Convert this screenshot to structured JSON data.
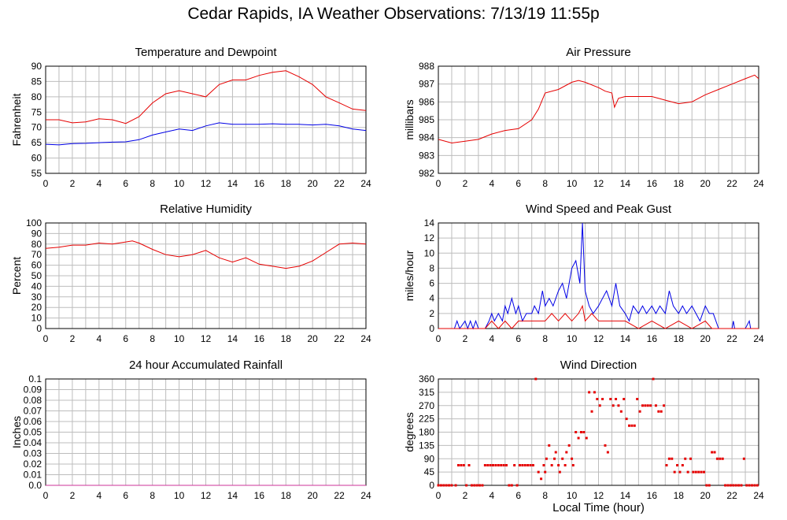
{
  "title": "Cedar Rapids, IA Weather Observations: 7/13/19 11:55p",
  "xlabel": "Local Time (hour)",
  "chart_data": [
    {
      "id": "temp",
      "type": "line",
      "title": "Temperature and Dewpoint",
      "xlabel": "",
      "ylabel": "Fahrenheit",
      "xlim": [
        0,
        24
      ],
      "ylim": [
        55,
        90
      ],
      "xticks": [
        "0",
        "2",
        "4",
        "6",
        "8",
        "10",
        "12",
        "14",
        "16",
        "18",
        "20",
        "22",
        "24"
      ],
      "yticks": [
        "55",
        "60",
        "65",
        "70",
        "75",
        "80",
        "85",
        "90"
      ],
      "grid": true,
      "series": [
        {
          "color": "#e60000",
          "x": [
            0,
            1,
            2,
            3,
            4,
            5,
            6,
            7,
            8,
            9,
            10,
            11,
            12,
            13,
            14,
            15,
            16,
            17,
            18,
            19,
            20,
            21,
            22,
            23,
            24
          ],
          "values": [
            72.5,
            72.5,
            71.5,
            71.8,
            72.8,
            72.5,
            71.3,
            73.5,
            78,
            81,
            82,
            81,
            80,
            84,
            85.5,
            85.5,
            87,
            88,
            88.5,
            86.5,
            84,
            80,
            78,
            76,
            75.5
          ]
        },
        {
          "color": "#0000e6",
          "x": [
            0,
            1,
            2,
            3,
            4,
            5,
            6,
            7,
            8,
            9,
            10,
            11,
            12,
            13,
            14,
            15,
            16,
            17,
            18,
            19,
            20,
            21,
            22,
            23,
            24
          ],
          "values": [
            64.5,
            64.3,
            64.7,
            64.8,
            65,
            65.2,
            65.3,
            66,
            67.5,
            68.5,
            69.5,
            69,
            70.5,
            71.5,
            71,
            71,
            71,
            71.2,
            71,
            71,
            70.8,
            71,
            70.5,
            69.5,
            69
          ]
        }
      ]
    },
    {
      "id": "pressure",
      "type": "line",
      "title": "Air Pressure",
      "xlabel": "",
      "ylabel": "millibars",
      "xlim": [
        0,
        24
      ],
      "ylim": [
        982,
        988
      ],
      "xticks": [
        "0",
        "2",
        "4",
        "6",
        "8",
        "10",
        "12",
        "14",
        "16",
        "18",
        "20",
        "22",
        "24"
      ],
      "yticks": [
        "982",
        "983",
        "984",
        "985",
        "986",
        "987",
        "988"
      ],
      "grid": true,
      "series": [
        {
          "color": "#e60000",
          "x": [
            0,
            1,
            2,
            3,
            4,
            5,
            6,
            7,
            7.5,
            8,
            9,
            10,
            10.5,
            11,
            12,
            12.5,
            13,
            13.2,
            13.5,
            14,
            15,
            16,
            17,
            18,
            19,
            20,
            21,
            22,
            23,
            23.7,
            24
          ],
          "values": [
            983.9,
            983.7,
            983.8,
            983.9,
            984.2,
            984.4,
            984.5,
            985,
            985.6,
            986.5,
            986.7,
            987.1,
            987.2,
            987.1,
            986.8,
            986.6,
            986.5,
            985.7,
            986.2,
            986.3,
            986.3,
            986.3,
            986.1,
            985.9,
            986,
            986.4,
            986.7,
            987,
            987.3,
            987.5,
            987.3
          ]
        }
      ]
    },
    {
      "id": "humidity",
      "type": "line",
      "title": "Relative Humidity",
      "xlabel": "",
      "ylabel": "Percent",
      "xlim": [
        0,
        24
      ],
      "ylim": [
        0,
        100
      ],
      "xticks": [
        "0",
        "2",
        "4",
        "6",
        "8",
        "10",
        "12",
        "14",
        "16",
        "18",
        "20",
        "22",
        "24"
      ],
      "yticks": [
        "0",
        "10",
        "20",
        "30",
        "40",
        "50",
        "60",
        "70",
        "80",
        "90",
        "100"
      ],
      "grid": true,
      "series": [
        {
          "color": "#e60000",
          "x": [
            0,
            1,
            2,
            3,
            4,
            5,
            6,
            6.5,
            7,
            8,
            9,
            10,
            11,
            12,
            13,
            14,
            15,
            16,
            17,
            18,
            19,
            20,
            21,
            22,
            23,
            24
          ],
          "values": [
            76,
            77,
            79,
            79,
            81,
            80,
            82,
            83,
            81,
            75,
            70,
            68,
            70,
            74,
            67,
            63,
            67,
            61,
            59,
            57,
            59,
            64,
            72,
            80,
            81,
            80
          ]
        }
      ]
    },
    {
      "id": "wind",
      "type": "line",
      "title": "Wind Speed and Peak Gust",
      "xlabel": "",
      "ylabel": "miles/hour",
      "xlim": [
        0,
        24
      ],
      "ylim": [
        0,
        14
      ],
      "xticks": [
        "0",
        "2",
        "4",
        "6",
        "8",
        "10",
        "12",
        "14",
        "16",
        "18",
        "20",
        "22",
        "24"
      ],
      "yticks": [
        "0",
        "2",
        "4",
        "6",
        "8",
        "10",
        "12",
        "14"
      ],
      "grid": true,
      "series": [
        {
          "color": "#0000e6",
          "x": [
            0,
            1.2,
            1.4,
            1.6,
            2,
            2.2,
            2.4,
            2.6,
            2.8,
            3,
            3.5,
            3.8,
            4,
            4.2,
            4.5,
            4.8,
            5,
            5.2,
            5.5,
            5.8,
            6,
            6.3,
            6.6,
            7,
            7.2,
            7.5,
            7.8,
            8,
            8.3,
            8.6,
            9,
            9.3,
            9.6,
            10,
            10.3,
            10.6,
            10.8,
            11,
            11.3,
            11.6,
            12,
            12.3,
            12.6,
            13,
            13.3,
            13.6,
            14,
            14.3,
            14.6,
            15,
            15.3,
            15.6,
            16,
            16.3,
            16.6,
            17,
            17.3,
            17.6,
            18,
            18.3,
            18.6,
            19,
            19.3,
            19.6,
            20,
            20.3,
            20.6,
            21,
            21.5,
            22,
            22.1,
            22.2,
            23,
            23.3,
            23.4,
            24
          ],
          "values": [
            0,
            0,
            1,
            0,
            1,
            0,
            1,
            0,
            1,
            0,
            0,
            1,
            2,
            1,
            2,
            1,
            3,
            2,
            4,
            2,
            3,
            1,
            2,
            2,
            3,
            2,
            5,
            3,
            4,
            3,
            5,
            6,
            4,
            8,
            9,
            6,
            14,
            5,
            3,
            2,
            3,
            4,
            5,
            3,
            6,
            3,
            2,
            1,
            3,
            2,
            3,
            2,
            3,
            2,
            3,
            2,
            5,
            3,
            2,
            3,
            2,
            3,
            2,
            1,
            3,
            2,
            2,
            0,
            0,
            0,
            1,
            0,
            0,
            1,
            0,
            0
          ]
        },
        {
          "color": "#e60000",
          "x": [
            0,
            3.5,
            4,
            4.5,
            5,
            5.5,
            6,
            7,
            8,
            8.5,
            9,
            9.5,
            10,
            10.5,
            10.8,
            11,
            11.5,
            12,
            13,
            14,
            15,
            16,
            17,
            18,
            19,
            20,
            20.5,
            21,
            22,
            24
          ],
          "values": [
            0,
            0,
            1,
            0,
            1,
            0,
            1,
            1,
            1,
            2,
            1,
            2,
            1,
            2,
            3,
            1,
            2,
            1,
            1,
            1,
            0,
            1,
            0,
            1,
            0,
            1,
            0,
            0,
            0,
            0
          ]
        }
      ]
    },
    {
      "id": "rain",
      "type": "line",
      "title": "24 hour Accumulated Rainfall",
      "xlabel": "",
      "ylabel": "Inches",
      "xlim": [
        0,
        24
      ],
      "ylim": [
        0,
        0.1
      ],
      "xticks": [
        "0",
        "2",
        "4",
        "6",
        "8",
        "10",
        "12",
        "14",
        "16",
        "18",
        "20",
        "22",
        "24"
      ],
      "yticks": [
        "0.0",
        "0.01",
        "0.02",
        "0.03",
        "0.04",
        "0.05",
        "0.06",
        "0.07",
        "0.08",
        "0.09",
        "0.1"
      ],
      "grid": true,
      "series": [
        {
          "color": "#cc3399",
          "x": [
            0,
            24
          ],
          "values": [
            0,
            0
          ]
        }
      ]
    },
    {
      "id": "direction",
      "type": "scatter",
      "title": "Wind Direction",
      "xlabel": "",
      "ylabel": "degrees",
      "xlim": [
        0,
        24
      ],
      "ylim": [
        0,
        360
      ],
      "xticks": [
        "0",
        "2",
        "4",
        "6",
        "8",
        "10",
        "12",
        "14",
        "16",
        "18",
        "20",
        "22",
        "24"
      ],
      "yticks": [
        "0",
        "45",
        "90",
        "135",
        "180",
        "225",
        "270",
        "315",
        "360"
      ],
      "grid": true,
      "series": [
        {
          "color": "#e60000",
          "x": [
            0,
            0.2,
            0.4,
            0.6,
            0.8,
            1,
            1.3,
            1.5,
            1.7,
            1.9,
            2.1,
            2.3,
            2.5,
            2.7,
            2.9,
            3.1,
            3.3,
            3.5,
            3.7,
            3.9,
            4.1,
            4.3,
            4.5,
            4.7,
            4.9,
            5.1,
            5.3,
            5.5,
            5.7,
            5.9,
            6.1,
            6.3,
            6.5,
            6.7,
            6.9,
            7.1,
            7.3,
            7.5,
            7.7,
            7.9,
            8.0,
            8.1,
            8.3,
            8.5,
            8.7,
            8.8,
            9,
            9.1,
            9.3,
            9.5,
            9.6,
            9.8,
            10,
            10.1,
            10.3,
            10.5,
            10.7,
            10.9,
            11.1,
            11.3,
            11.5,
            11.7,
            11.9,
            12.1,
            12.3,
            12.5,
            12.7,
            12.9,
            13.1,
            13.3,
            13.5,
            13.7,
            13.9,
            14.1,
            14.3,
            14.5,
            14.7,
            14.9,
            15.1,
            15.3,
            15.5,
            15.7,
            15.9,
            16.1,
            16.3,
            16.5,
            16.7,
            16.9,
            17.1,
            17.3,
            17.5,
            17.7,
            17.9,
            18.1,
            18.3,
            18.5,
            18.7,
            18.9,
            19.1,
            19.3,
            19.5,
            19.7,
            19.9,
            20.1,
            20.3,
            20.5,
            20.7,
            20.9,
            21.1,
            21.3,
            21.5,
            21.7,
            21.9,
            22.1,
            22.3,
            22.5,
            22.7,
            22.9,
            23.1,
            23.3,
            23.5,
            23.7,
            23.9
          ],
          "values": [
            0,
            0,
            0,
            0,
            0,
            0,
            0,
            68,
            68,
            68,
            0,
            68,
            0,
            0,
            0,
            0,
            0,
            68,
            68,
            68,
            68,
            68,
            68,
            68,
            68,
            68,
            0,
            0,
            68,
            0,
            68,
            68,
            68,
            68,
            68,
            68,
            360,
            45,
            22,
            68,
            45,
            90,
            135,
            68,
            90,
            112,
            68,
            45,
            90,
            68,
            112,
            135,
            90,
            68,
            180,
            160,
            180,
            180,
            160,
            315,
            250,
            315,
            292,
            270,
            292,
            135,
            112,
            292,
            270,
            292,
            270,
            250,
            292,
            225,
            202,
            202,
            202,
            292,
            250,
            270,
            270,
            270,
            270,
            360,
            270,
            250,
            250,
            270,
            68,
            90,
            90,
            45,
            68,
            45,
            68,
            90,
            45,
            90,
            45,
            45,
            45,
            45,
            45,
            0,
            0,
            112,
            112,
            90,
            90,
            90,
            0,
            0,
            0,
            0,
            0,
            0,
            0,
            90,
            0,
            0,
            0,
            0,
            0
          ]
        }
      ]
    }
  ]
}
